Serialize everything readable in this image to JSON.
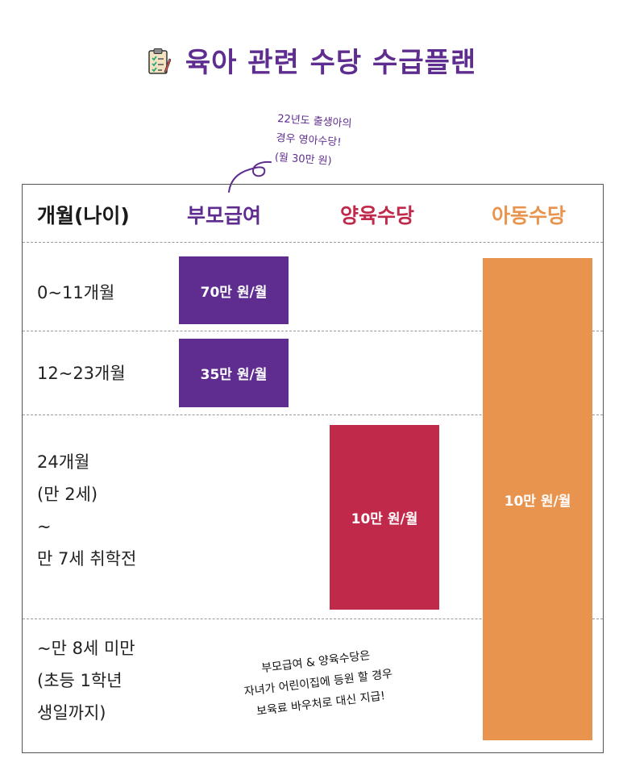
{
  "title": "육아 관련 수당 수급플랜",
  "icon": "clipboard-checklist-icon",
  "note_top": [
    "22년도 출생아의",
    "경우 영아수당!",
    "(월 30만 원)"
  ],
  "headers": {
    "age": "개월(나이)",
    "parent": "부모급여",
    "home": "양육수당",
    "child": "아동수당"
  },
  "rows": [
    {
      "lines": [
        "0~11개월"
      ]
    },
    {
      "lines": [
        "12~23개월"
      ]
    },
    {
      "lines": [
        "24개월",
        "(만 2세)",
        "~",
        "만 7세 취학전"
      ]
    },
    {
      "lines": [
        "~만 8세 미만",
        "(초등 1학년",
        "생일까지)"
      ]
    }
  ],
  "bars": {
    "parent_0_11": "70만 원/월",
    "parent_12_23": "35만 원/월",
    "home": "10만 원/월",
    "child": "10만 원/월"
  },
  "note_bottom": [
    "부모급여 & 양육수당은",
    "자녀가 어린이집에 등원 할 경우",
    "보육료 바우처로 대신 지급!"
  ],
  "colors": {
    "parent": "#5e2d8f",
    "home": "#c0294a",
    "child": "#e8944f"
  }
}
